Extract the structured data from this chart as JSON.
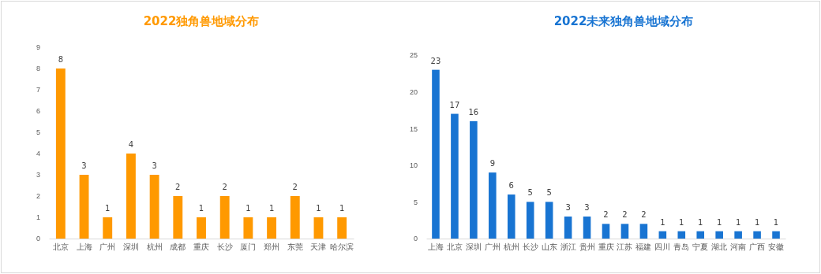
{
  "chart_data": [
    {
      "type": "bar",
      "title": "2022独角兽地域分布",
      "categories": [
        "北京",
        "上海",
        "广州",
        "深圳",
        "杭州",
        "成都",
        "重庆",
        "长沙",
        "厦门",
        "郑州",
        "东莞",
        "天津",
        "哈尔滨"
      ],
      "series": [
        {
          "color": "#ff9900",
          "values": [
            8,
            3,
            1,
            4,
            3,
            2,
            1,
            2,
            1,
            1,
            2,
            1,
            1
          ]
        }
      ],
      "ylim": [
        0,
        9
      ],
      "yticks": [
        0,
        1,
        2,
        3,
        4,
        5,
        6,
        7,
        8,
        9
      ],
      "data_labels": true,
      "grid": false
    },
    {
      "type": "bar",
      "title": "2022未来独角兽地域分布",
      "categories": [
        "上海",
        "北京",
        "深圳",
        "广州",
        "杭州",
        "长沙",
        "山东",
        "浙江",
        "贵州",
        "重庆",
        "江苏",
        "福建",
        "四川",
        "青岛",
        "宁夏",
        "湖北",
        "河南",
        "广西",
        "安徽"
      ],
      "series": [
        {
          "color": "#1874d2",
          "values": [
            23,
            17,
            16,
            9,
            6,
            5,
            5,
            3,
            3,
            2,
            2,
            2,
            1,
            1,
            1,
            1,
            1,
            1,
            1
          ]
        }
      ],
      "ylim": [
        0,
        25
      ],
      "yticks": [
        0,
        5,
        10,
        15,
        20,
        25
      ],
      "data_labels": true,
      "grid": false
    }
  ]
}
